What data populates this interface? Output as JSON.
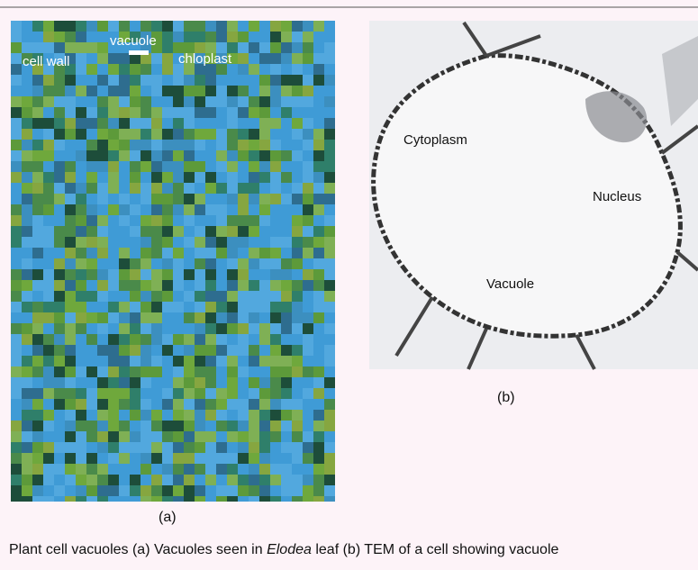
{
  "figure": {
    "panel_a": {
      "labels": [
        "cell wall",
        "vacuole",
        "chloplast"
      ],
      "tag": "(a)"
    },
    "panel_b": {
      "labels": [
        "Cytoplasm",
        "Nucleus",
        "Vacuole"
      ],
      "tag": "(b)"
    },
    "caption": {
      "before": "Plant cell vacuoles (a) Vacuoles seen in ",
      "italic": "Elodea",
      "after": " leaf (b) TEM of a cell showing vacuole"
    }
  }
}
